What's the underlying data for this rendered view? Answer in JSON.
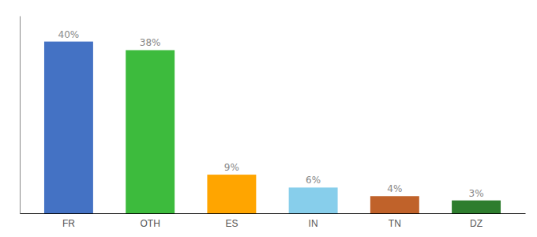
{
  "chart_data": {
    "type": "bar",
    "categories": [
      "FR",
      "OTH",
      "ES",
      "IN",
      "TN",
      "DZ"
    ],
    "values": [
      40,
      38,
      9,
      6,
      4,
      3
    ],
    "value_labels": [
      "40%",
      "38%",
      "9%",
      "6%",
      "4%",
      "3%"
    ],
    "colors": [
      "#4472C4",
      "#3DBB3D",
      "#FFA500",
      "#87CEEB",
      "#C0622A",
      "#2E7D2E"
    ],
    "ylim": [
      0,
      46
    ],
    "data_labels": true,
    "tick_labels": "x"
  }
}
